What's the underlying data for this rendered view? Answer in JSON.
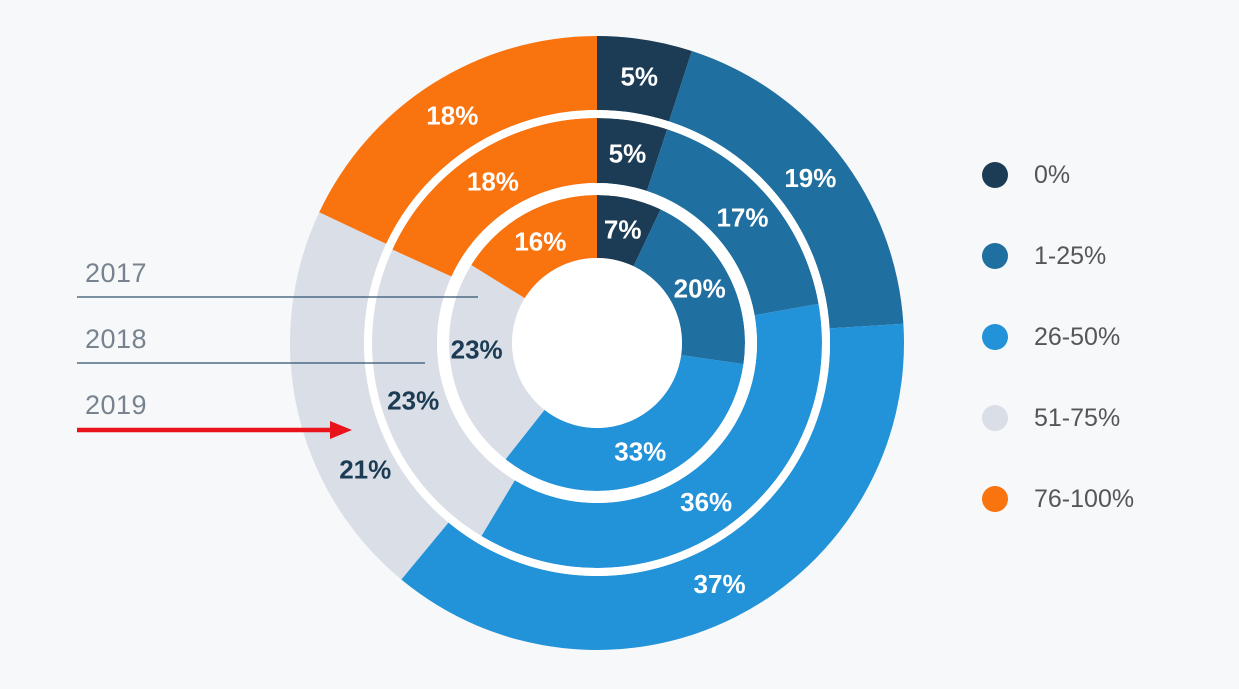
{
  "background_color": "#F7F8F9",
  "chart_data": {
    "type": "pie",
    "variant": "concentric-donut",
    "title": "",
    "categories": [
      "0%",
      "1-25%",
      "26-50%",
      "51-75%",
      "76-100%"
    ],
    "colors": [
      "#1C3B54",
      "#1F6FA0",
      "#2292D9",
      "#DADEE7",
      "#F9730F"
    ],
    "label_text_colors": [
      "#FFFFFF",
      "#FFFFFF",
      "#FFFFFF",
      "#1C3B54",
      "#FFFFFF"
    ],
    "value_suffix": "%",
    "start_angle_deg": 0,
    "direction": "clockwise",
    "legend_position": "right",
    "series": [
      {
        "name": "2017",
        "ring": "inner",
        "values": [
          7,
          20,
          33,
          23,
          16
        ]
      },
      {
        "name": "2018",
        "ring": "middle",
        "values": [
          5,
          17,
          36,
          23,
          18
        ]
      },
      {
        "name": "2019",
        "ring": "outer",
        "values": [
          5,
          19,
          37,
          21,
          18
        ]
      }
    ]
  },
  "legend": {
    "items": [
      {
        "label": "0%",
        "color": "#1C3B54"
      },
      {
        "label": "1-25%",
        "color": "#1F6FA0"
      },
      {
        "label": "26-50%",
        "color": "#2292D9"
      },
      {
        "label": "51-75%",
        "color": "#DADEE7"
      },
      {
        "label": "76-100%",
        "color": "#F9730F"
      }
    ]
  },
  "annotations": {
    "years": [
      {
        "label": "2017",
        "target_ring": "inner",
        "pointer": "line"
      },
      {
        "label": "2018",
        "target_ring": "middle",
        "pointer": "line"
      },
      {
        "label": "2019",
        "target_ring": "outer",
        "pointer": "arrow"
      }
    ],
    "line_color": "#2E536F",
    "arrow_color": "#E9141B",
    "label_color": "#78838F",
    "separator_color": "#FFFFFF"
  }
}
